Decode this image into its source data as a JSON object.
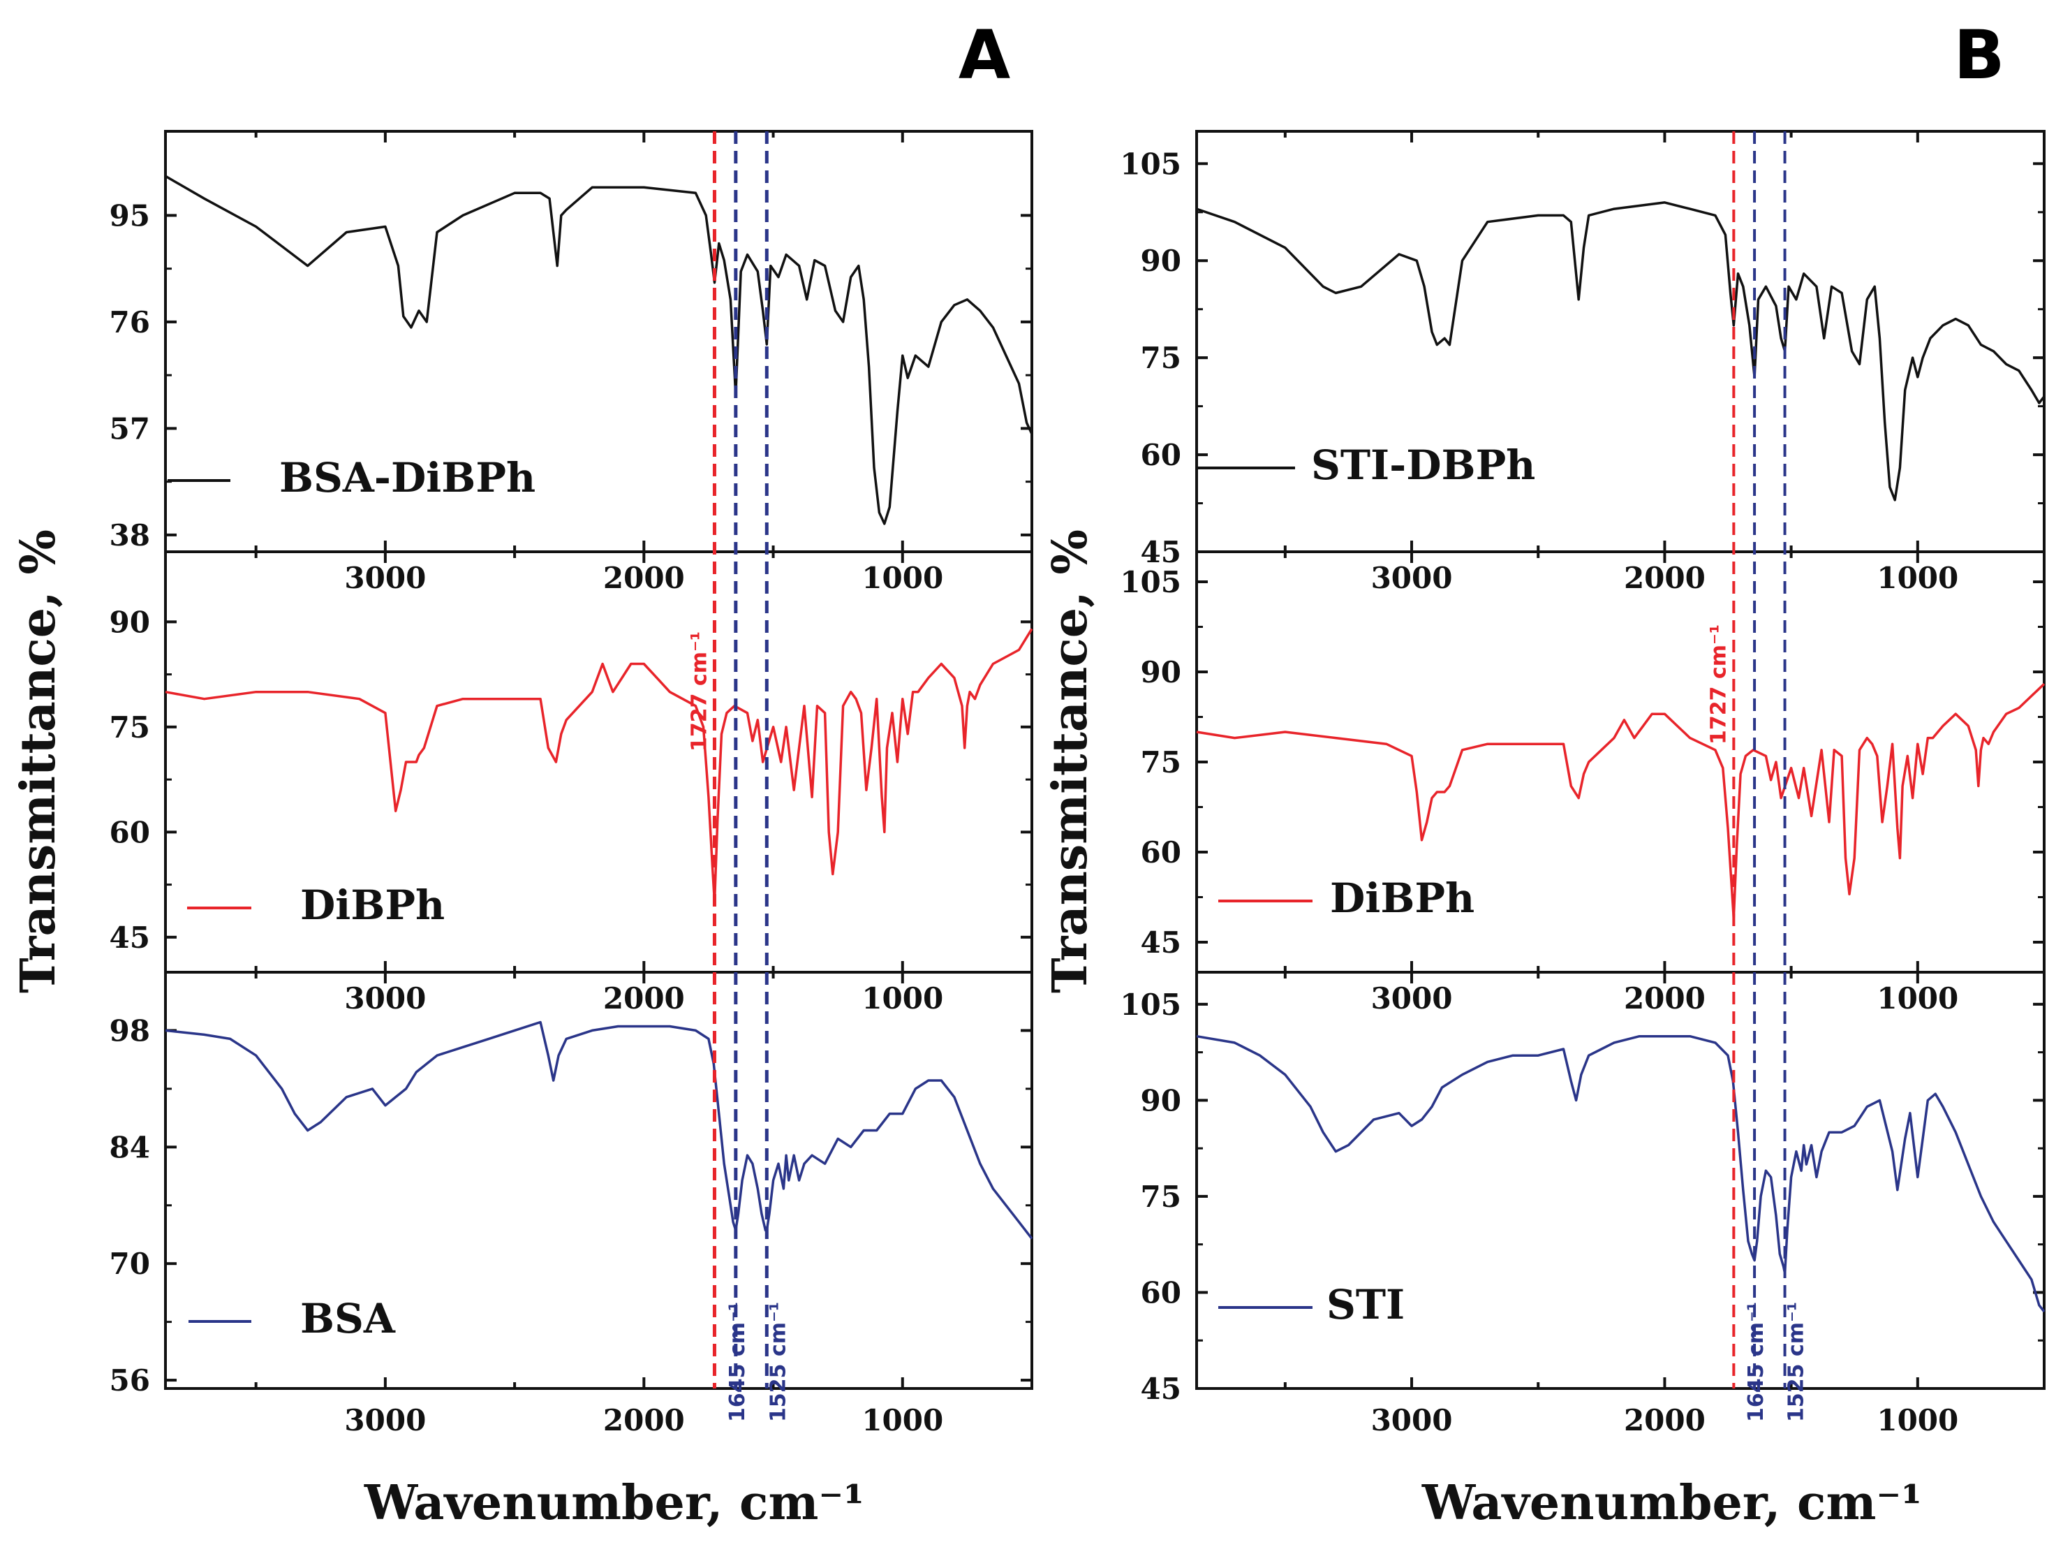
{
  "chart_data": [
    {
      "panel": "A",
      "type": "line",
      "ylabel": "Transmittance, %",
      "xlabel": "Wavenumber, cm⁻¹",
      "xlim": [
        3850,
        500
      ],
      "xticks": [
        3000,
        2000,
        1000
      ],
      "subplots": [
        {
          "name": "BSA-DiBPh",
          "color": "#111111",
          "ylim": [
            35,
            110
          ],
          "yticks": [
            38,
            57,
            76,
            95
          ],
          "x": [
            3850,
            3700,
            3500,
            3300,
            3150,
            3000,
            2950,
            2930,
            2900,
            2870,
            2840,
            2800,
            2700,
            2500,
            2400,
            2365,
            2335,
            2320,
            2300,
            2200,
            2000,
            1800,
            1760,
            1740,
            1727,
            1710,
            1690,
            1665,
            1645,
            1625,
            1600,
            1560,
            1540,
            1525,
            1510,
            1480,
            1450,
            1400,
            1370,
            1340,
            1300,
            1260,
            1230,
            1200,
            1170,
            1150,
            1130,
            1110,
            1090,
            1070,
            1050,
            1020,
            1000,
            980,
            950,
            900,
            850,
            800,
            750,
            700,
            650,
            600,
            550,
            520,
            500
          ],
          "y": [
            102,
            98,
            93,
            86,
            92,
            93,
            86,
            77,
            75,
            78,
            76,
            92,
            95,
            99,
            99,
            98,
            86,
            95,
            96,
            100,
            100,
            99,
            95,
            88,
            83,
            90,
            87,
            80,
            63,
            85,
            88,
            85,
            78,
            72,
            86,
            84,
            88,
            86,
            80,
            87,
            86,
            78,
            76,
            84,
            86,
            80,
            68,
            50,
            42,
            40,
            43,
            60,
            70,
            66,
            70,
            68,
            76,
            79,
            80,
            78,
            75,
            70,
            65,
            58,
            56
          ]
        },
        {
          "name": "DiBPh",
          "color": "#e8242a",
          "ylim": [
            40,
            100
          ],
          "yticks": [
            45,
            60,
            75,
            90
          ],
          "x": [
            3850,
            3700,
            3500,
            3300,
            3100,
            3000,
            2980,
            2960,
            2940,
            2920,
            2900,
            2880,
            2870,
            2850,
            2800,
            2700,
            2500,
            2400,
            2370,
            2340,
            2320,
            2300,
            2200,
            2160,
            2120,
            2050,
            2000,
            1950,
            1900,
            1850,
            1800,
            1770,
            1750,
            1735,
            1727,
            1715,
            1700,
            1680,
            1650,
            1600,
            1580,
            1560,
            1540,
            1500,
            1470,
            1450,
            1420,
            1380,
            1350,
            1330,
            1300,
            1285,
            1270,
            1250,
            1230,
            1200,
            1180,
            1160,
            1140,
            1120,
            1100,
            1090,
            1080,
            1070,
            1060,
            1040,
            1020,
            1000,
            980,
            960,
            940,
            900,
            850,
            800,
            770,
            760,
            750,
            740,
            720,
            700,
            650,
            600,
            550,
            500
          ],
          "y": [
            80,
            79,
            80,
            80,
            79,
            77,
            70,
            63,
            66,
            70,
            70,
            70,
            71,
            72,
            78,
            79,
            79,
            79,
            72,
            70,
            74,
            76,
            80,
            84,
            80,
            84,
            84,
            82,
            80,
            79,
            78,
            75,
            65,
            55,
            50,
            62,
            74,
            77,
            78,
            77,
            73,
            76,
            70,
            75,
            70,
            75,
            66,
            78,
            65,
            78,
            77,
            60,
            54,
            60,
            78,
            80,
            79,
            77,
            66,
            72,
            79,
            72,
            65,
            60,
            72,
            77,
            70,
            79,
            74,
            80,
            80,
            82,
            84,
            82,
            78,
            72,
            78,
            80,
            79,
            81,
            84,
            85,
            86,
            89
          ]
        },
        {
          "name": "BSA",
          "color": "#2a3589",
          "ylim": [
            55,
            105
          ],
          "yticks": [
            56,
            70,
            84,
            98
          ],
          "x": [
            3850,
            3700,
            3600,
            3500,
            3400,
            3350,
            3300,
            3250,
            3150,
            3050,
            3000,
            2960,
            2920,
            2880,
            2800,
            2700,
            2600,
            2500,
            2400,
            2370,
            2350,
            2330,
            2300,
            2200,
            2100,
            2000,
            1900,
            1800,
            1750,
            1730,
            1710,
            1690,
            1670,
            1655,
            1645,
            1635,
            1620,
            1600,
            1580,
            1560,
            1545,
            1530,
            1525,
            1515,
            1500,
            1480,
            1460,
            1450,
            1440,
            1420,
            1400,
            1380,
            1350,
            1300,
            1250,
            1200,
            1150,
            1100,
            1050,
            1000,
            950,
            900,
            850,
            800,
            750,
            700,
            650,
            600,
            550,
            500
          ],
          "y": [
            98,
            97.5,
            97,
            95,
            91,
            88,
            86,
            87,
            90,
            91,
            89,
            90,
            91,
            93,
            95,
            96,
            97,
            98,
            99,
            95,
            92,
            95,
            97,
            98,
            98.5,
            98.5,
            98.5,
            98,
            97,
            94,
            88,
            82,
            78,
            75,
            74,
            76,
            80,
            83,
            82,
            79,
            76,
            74,
            74,
            76,
            80,
            82,
            79,
            83,
            80,
            83,
            80,
            82,
            83,
            82,
            85,
            84,
            86,
            86,
            88,
            88,
            91,
            92,
            92,
            90,
            86,
            82,
            79,
            77,
            75,
            73
          ]
        }
      ],
      "vlines": [
        {
          "x": 1727,
          "color": "#e8242a",
          "label": "1727 cm⁻¹",
          "subplot_label": 1
        },
        {
          "x": 1645,
          "color": "#2a3589",
          "label": "1645 cm⁻¹",
          "subplot_label": 2
        },
        {
          "x": 1525,
          "color": "#2a3589",
          "label": "1525 cm⁻¹",
          "subplot_label": 2
        }
      ]
    },
    {
      "panel": "B",
      "type": "line",
      "ylabel": "Transmittance, %",
      "xlabel": "Wavenumber, cm⁻¹",
      "xlim": [
        3850,
        500
      ],
      "xticks": [
        3000,
        2000,
        1000
      ],
      "subplots": [
        {
          "name": "STI-DBPh",
          "color": "#111111",
          "ylim": [
            45,
            110
          ],
          "yticks": [
            45,
            60,
            75,
            90,
            105
          ],
          "x": [
            3850,
            3700,
            3500,
            3350,
            3300,
            3200,
            3050,
            2980,
            2950,
            2920,
            2900,
            2870,
            2850,
            2800,
            2700,
            2500,
            2400,
            2370,
            2340,
            2320,
            2300,
            2200,
            2000,
            1900,
            1800,
            1760,
            1740,
            1727,
            1710,
            1690,
            1665,
            1645,
            1630,
            1600,
            1560,
            1540,
            1525,
            1510,
            1480,
            1450,
            1400,
            1370,
            1340,
            1300,
            1260,
            1230,
            1200,
            1170,
            1150,
            1130,
            1110,
            1090,
            1070,
            1050,
            1020,
            1000,
            980,
            950,
            900,
            850,
            800,
            750,
            700,
            650,
            600,
            550,
            520,
            500
          ],
          "y": [
            98,
            96,
            92,
            86,
            85,
            86,
            91,
            90,
            86,
            79,
            77,
            78,
            77,
            90,
            96,
            97,
            97,
            96,
            84,
            92,
            97,
            98,
            99,
            98,
            97,
            94,
            85,
            80,
            88,
            86,
            80,
            72,
            84,
            86,
            83,
            78,
            76,
            86,
            84,
            88,
            86,
            78,
            86,
            85,
            76,
            74,
            84,
            86,
            78,
            65,
            55,
            53,
            58,
            70,
            75,
            72,
            75,
            78,
            80,
            81,
            80,
            77,
            76,
            74,
            73,
            70,
            68,
            69
          ]
        },
        {
          "name": "DiBPh",
          "color": "#e8242a",
          "ylim": [
            40,
            110
          ],
          "yticks": [
            45,
            60,
            75,
            90,
            105
          ],
          "x": [
            3850,
            3700,
            3500,
            3300,
            3100,
            3000,
            2980,
            2960,
            2940,
            2920,
            2900,
            2880,
            2870,
            2850,
            2800,
            2700,
            2500,
            2400,
            2370,
            2340,
            2320,
            2300,
            2200,
            2160,
            2120,
            2050,
            2000,
            1950,
            1900,
            1850,
            1800,
            1770,
            1750,
            1735,
            1727,
            1715,
            1700,
            1680,
            1650,
            1600,
            1580,
            1560,
            1540,
            1500,
            1470,
            1450,
            1420,
            1380,
            1350,
            1330,
            1300,
            1285,
            1270,
            1250,
            1230,
            1200,
            1180,
            1160,
            1140,
            1120,
            1100,
            1090,
            1080,
            1070,
            1060,
            1040,
            1020,
            1000,
            980,
            960,
            940,
            900,
            850,
            800,
            770,
            760,
            750,
            740,
            720,
            700,
            650,
            600,
            550,
            500
          ],
          "y": [
            80,
            79,
            80,
            79,
            78,
            76,
            70,
            62,
            65,
            69,
            70,
            70,
            70,
            71,
            77,
            78,
            78,
            78,
            71,
            69,
            73,
            75,
            79,
            82,
            79,
            83,
            83,
            81,
            79,
            78,
            77,
            74,
            64,
            54,
            49,
            61,
            73,
            76,
            77,
            76,
            72,
            75,
            69,
            74,
            69,
            74,
            66,
            77,
            65,
            77,
            76,
            59,
            53,
            59,
            77,
            79,
            78,
            76,
            65,
            71,
            78,
            71,
            64,
            59,
            71,
            76,
            69,
            78,
            73,
            79,
            79,
            81,
            83,
            81,
            77,
            71,
            77,
            79,
            78,
            80,
            83,
            84,
            86,
            88
          ]
        },
        {
          "name": "STI",
          "color": "#2a3589",
          "ylim": [
            45,
            110
          ],
          "yticks": [
            45,
            60,
            75,
            90,
            105
          ],
          "x": [
            3850,
            3700,
            3600,
            3500,
            3400,
            3350,
            3300,
            3250,
            3150,
            3050,
            3000,
            2960,
            2920,
            2880,
            2800,
            2700,
            2600,
            2500,
            2400,
            2370,
            2350,
            2330,
            2300,
            2200,
            2100,
            2000,
            1900,
            1800,
            1750,
            1730,
            1710,
            1690,
            1670,
            1655,
            1645,
            1635,
            1620,
            1600,
            1580,
            1560,
            1545,
            1530,
            1525,
            1515,
            1500,
            1480,
            1460,
            1450,
            1440,
            1420,
            1400,
            1380,
            1350,
            1300,
            1250,
            1200,
            1150,
            1100,
            1080,
            1050,
            1030,
            1000,
            980,
            960,
            930,
            900,
            850,
            800,
            750,
            700,
            650,
            600,
            550,
            520,
            500
          ],
          "y": [
            100,
            99,
            97,
            94,
            89,
            85,
            82,
            83,
            87,
            88,
            86,
            87,
            89,
            92,
            94,
            96,
            97,
            97,
            98,
            93,
            90,
            94,
            97,
            99,
            100,
            100,
            100,
            99,
            97,
            93,
            85,
            76,
            68,
            66,
            65,
            68,
            75,
            79,
            78,
            72,
            66,
            64,
            63,
            70,
            78,
            82,
            79,
            83,
            80,
            83,
            78,
            82,
            85,
            85,
            86,
            89,
            90,
            82,
            76,
            84,
            88,
            78,
            84,
            90,
            91,
            89,
            85,
            80,
            75,
            71,
            68,
            65,
            62,
            58,
            57
          ]
        }
      ],
      "vlines": [
        {
          "x": 1727,
          "color": "#e8242a",
          "label": "1727 cm⁻¹",
          "subplot_label": 1
        },
        {
          "x": 1645,
          "color": "#2a3589",
          "label": "1645 cm⁻¹",
          "subplot_label": 2
        },
        {
          "x": 1525,
          "color": "#2a3589",
          "label": "1525 cm⁻¹",
          "subplot_label": 2
        }
      ]
    }
  ]
}
